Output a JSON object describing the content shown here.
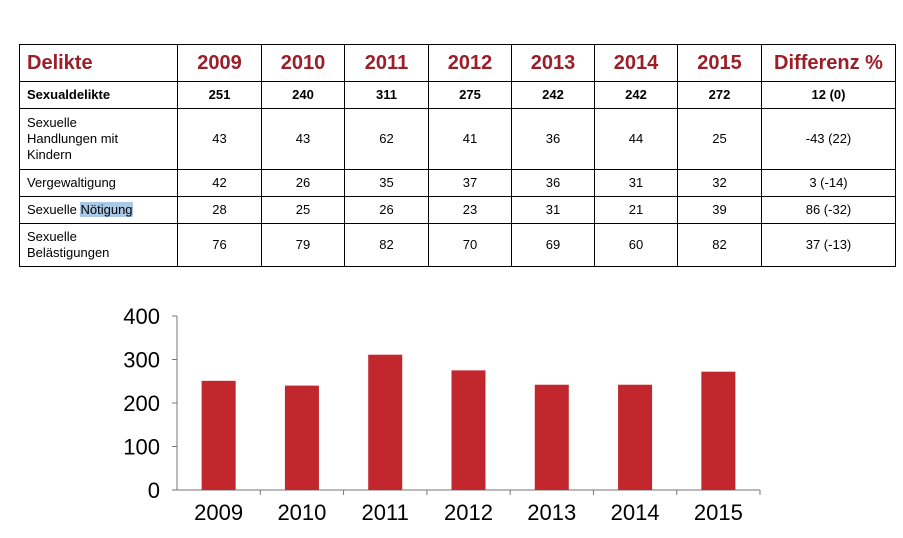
{
  "table": {
    "headers": [
      "Delikte",
      "2009",
      "2010",
      "2011",
      "2012",
      "2013",
      "2014",
      "2015",
      "Differenz %"
    ],
    "rows": [
      {
        "label": "Sexualdelikte",
        "values": [
          "251",
          "240",
          "311",
          "275",
          "242",
          "242",
          "272"
        ],
        "diff": "12 (0)"
      },
      {
        "label_lines": [
          "Sexuelle",
          "Handlungen mit",
          "Kindern"
        ],
        "values": [
          "43",
          "43",
          "62",
          "41",
          "36",
          "44",
          "25"
        ],
        "diff": "-43 (22)"
      },
      {
        "label": "Vergewaltigung",
        "values": [
          "42",
          "26",
          "35",
          "37",
          "36",
          "31",
          "32"
        ],
        "diff": "3  (-14)"
      },
      {
        "label_prefix": "Sexuelle ",
        "label_highlight": "Nötigung",
        "values": [
          "28",
          "25",
          "26",
          "23",
          "31",
          "21",
          "39"
        ],
        "diff": "86 (-32)"
      },
      {
        "label_lines": [
          "Sexuelle",
          "Belästigungen"
        ],
        "values": [
          "76",
          "79",
          "82",
          "70",
          "69",
          "60",
          "82"
        ],
        "diff": "37 (-13)"
      }
    ]
  },
  "chart_data": {
    "type": "bar",
    "categories": [
      "2009",
      "2010",
      "2011",
      "2012",
      "2013",
      "2014",
      "2015"
    ],
    "values": [
      251,
      240,
      311,
      275,
      242,
      242,
      272
    ],
    "ylim": [
      0,
      400
    ],
    "yticks": [
      "0",
      "100",
      "200",
      "300",
      "400"
    ],
    "grid": false,
    "bar_color": "#c1272d"
  }
}
